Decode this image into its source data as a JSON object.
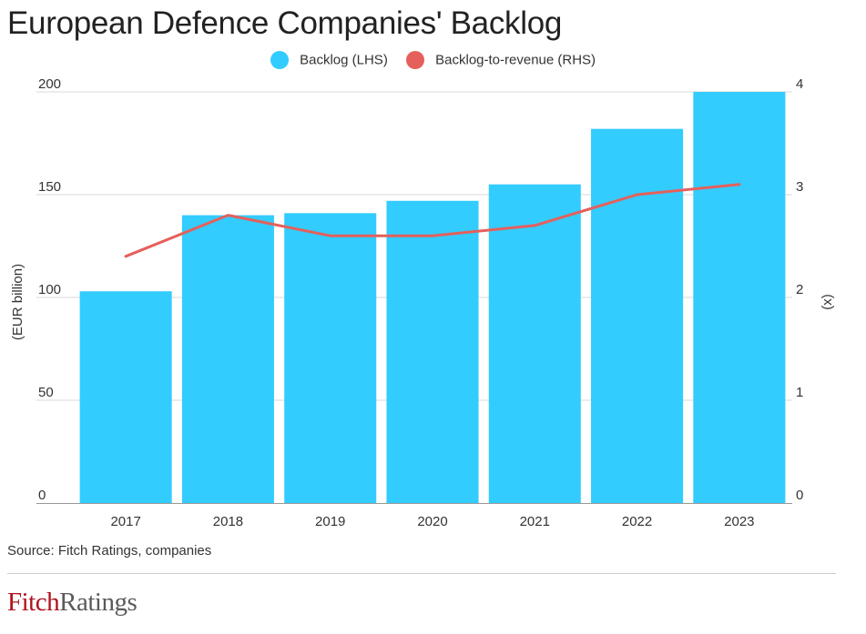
{
  "title": "European Defence Companies' Backlog",
  "source": "Source: Fitch Ratings, companies",
  "logo": {
    "part1": "Fitch",
    "part2": "Ratings"
  },
  "colors": {
    "bar": "#33ccff",
    "line": "#e5605b",
    "grid": "#d9d9d9",
    "axis": "#999999"
  },
  "chart_data": {
    "type": "bar",
    "categories": [
      "2017",
      "2018",
      "2019",
      "2020",
      "2021",
      "2022",
      "2023"
    ],
    "series": [
      {
        "name": "Backlog (LHS)",
        "type": "bar",
        "axis": "left",
        "values": [
          103,
          140,
          141,
          147,
          155,
          182,
          200
        ]
      },
      {
        "name": "Backlog-to-revenue (RHS)",
        "type": "line",
        "axis": "right",
        "values": [
          2.4,
          2.8,
          2.6,
          2.6,
          2.7,
          3.0,
          3.1
        ]
      }
    ],
    "ylabel_left": "(EUR billion)",
    "ylabel_right": "(x)",
    "ylim_left": [
      0,
      200
    ],
    "ylim_right": [
      0,
      4
    ],
    "yticks_left": [
      "0",
      "50",
      "100",
      "150",
      "200"
    ],
    "yticks_right": [
      "0",
      "1",
      "2",
      "3",
      "4"
    ],
    "grid": true,
    "legend_position": "top-center"
  }
}
